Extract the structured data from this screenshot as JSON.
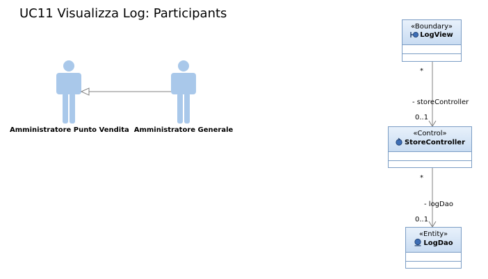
{
  "diagram": {
    "title": "UC11 Visualizza Log: Participants"
  },
  "actors": [
    {
      "label": "Amministratore Punto Vendita"
    },
    {
      "label": "Amministratore Generale"
    }
  ],
  "classes": {
    "log_view": {
      "stereotype": "«Boundary»",
      "name": "LogView"
    },
    "store_controller": {
      "stereotype": "«Control»",
      "name": "StoreController"
    },
    "log_dao": {
      "stereotype": "«Entity»",
      "name": "LogDao"
    }
  },
  "associations": {
    "view_to_controller": {
      "role": "- storeController",
      "source_mult": "*",
      "target_mult": "0..1"
    },
    "controller_to_dao": {
      "role": "- logDao",
      "source_mult": "*",
      "target_mult": "0..1"
    }
  },
  "colors": {
    "actor_fill": "#a9c8ea",
    "class_border": "#7a9cc4",
    "class_header_top": "#e8f1fb",
    "class_header_bottom": "#c9dcf2",
    "edge": "#808080"
  }
}
